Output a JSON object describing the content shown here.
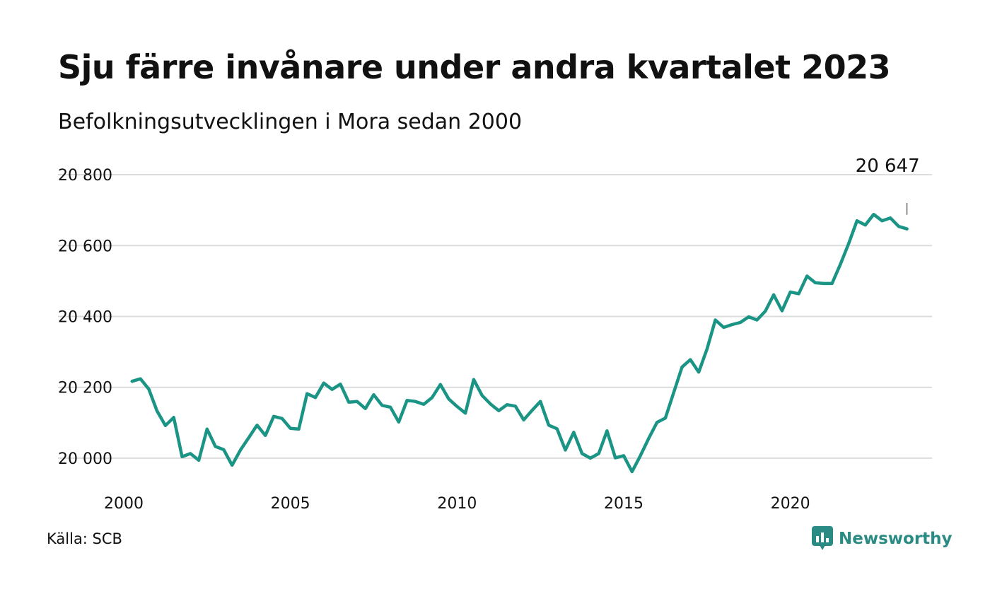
{
  "title": "Sju färre invånare under andra kvartalet 2023",
  "subtitle": "Befolkningsutvecklingen i Mora sedan 2000",
  "source": "Källa: SCB",
  "brand": {
    "name": "Newsworthy",
    "icon": "newsworthy-logo-icon",
    "color": "#2a8a84"
  },
  "chart_data": {
    "type": "line",
    "title": "Sju färre invånare under andra kvartalet 2023",
    "subtitle": "Befolkningsutvecklingen i Mora sedan 2000",
    "xlabel": "",
    "ylabel": "",
    "xlim": [
      2000,
      2024.25
    ],
    "ylim": [
      19920,
      20850
    ],
    "x_ticks": [
      2000,
      2005,
      2010,
      2015,
      2020
    ],
    "x_tick_labels": [
      "2000",
      "2005",
      "2010",
      "2015",
      "2020"
    ],
    "y_ticks": [
      20000,
      20200,
      20400,
      20600,
      20800
    ],
    "y_tick_labels": [
      "20 000",
      "20 200",
      "20 400",
      "20 600",
      "20 800"
    ],
    "grid": "horizontal",
    "line_color": "#1a9484",
    "end_label": "20 647",
    "series": [
      {
        "name": "",
        "x": [
          2000.25,
          2000.5,
          2000.75,
          2001.0,
          2001.25,
          2001.5,
          2001.75,
          2002.0,
          2002.25,
          2002.5,
          2002.75,
          2003.0,
          2003.25,
          2003.5,
          2003.75,
          2004.0,
          2004.25,
          2004.5,
          2004.75,
          2005.0,
          2005.25,
          2005.5,
          2005.75,
          2006.0,
          2006.25,
          2006.5,
          2006.75,
          2007.0,
          2007.25,
          2007.5,
          2007.75,
          2008.0,
          2008.25,
          2008.5,
          2008.75,
          2009.0,
          2009.25,
          2009.5,
          2009.75,
          2010.0,
          2010.25,
          2010.5,
          2010.75,
          2011.0,
          2011.25,
          2011.5,
          2011.75,
          2012.0,
          2012.25,
          2012.5,
          2012.75,
          2013.0,
          2013.25,
          2013.5,
          2013.75,
          2014.0,
          2014.25,
          2014.5,
          2014.75,
          2015.0,
          2015.25,
          2015.5,
          2015.75,
          2016.0,
          2016.25,
          2016.5,
          2016.75,
          2017.0,
          2017.25,
          2017.5,
          2017.75,
          2018.0,
          2018.25,
          2018.5,
          2018.75,
          2019.0,
          2019.25,
          2019.5,
          2019.75,
          2020.0,
          2020.25,
          2020.5,
          2020.75,
          2021.0,
          2021.25,
          2021.5,
          2021.75,
          2022.0,
          2022.25,
          2022.5,
          2022.75,
          2023.0,
          2023.25,
          2023.5
        ],
        "values": [
          20217,
          20224,
          20195,
          20133,
          20092,
          20115,
          20004,
          20013,
          19994,
          20082,
          20033,
          20024,
          19980,
          20023,
          20058,
          20093,
          20064,
          20118,
          20112,
          20084,
          20082,
          20182,
          20171,
          20212,
          20194,
          20209,
          20158,
          20160,
          20140,
          20179,
          20149,
          20144,
          20102,
          20163,
          20160,
          20152,
          20171,
          20208,
          20167,
          20146,
          20127,
          20222,
          20177,
          20153,
          20134,
          20151,
          20147,
          20108,
          20135,
          20160,
          20093,
          20083,
          20023,
          20073,
          20013,
          20000,
          20013,
          20077,
          20001,
          20007,
          19962,
          20007,
          20056,
          20101,
          20113,
          20185,
          20257,
          20278,
          20243,
          20308,
          20390,
          20369,
          20377,
          20383,
          20399,
          20390,
          20415,
          20461,
          20416,
          20469,
          20464,
          20514,
          20495,
          20493,
          20493,
          20547,
          20606,
          20670,
          20658,
          20688,
          20670,
          20678,
          20654,
          20647
        ]
      }
    ]
  }
}
